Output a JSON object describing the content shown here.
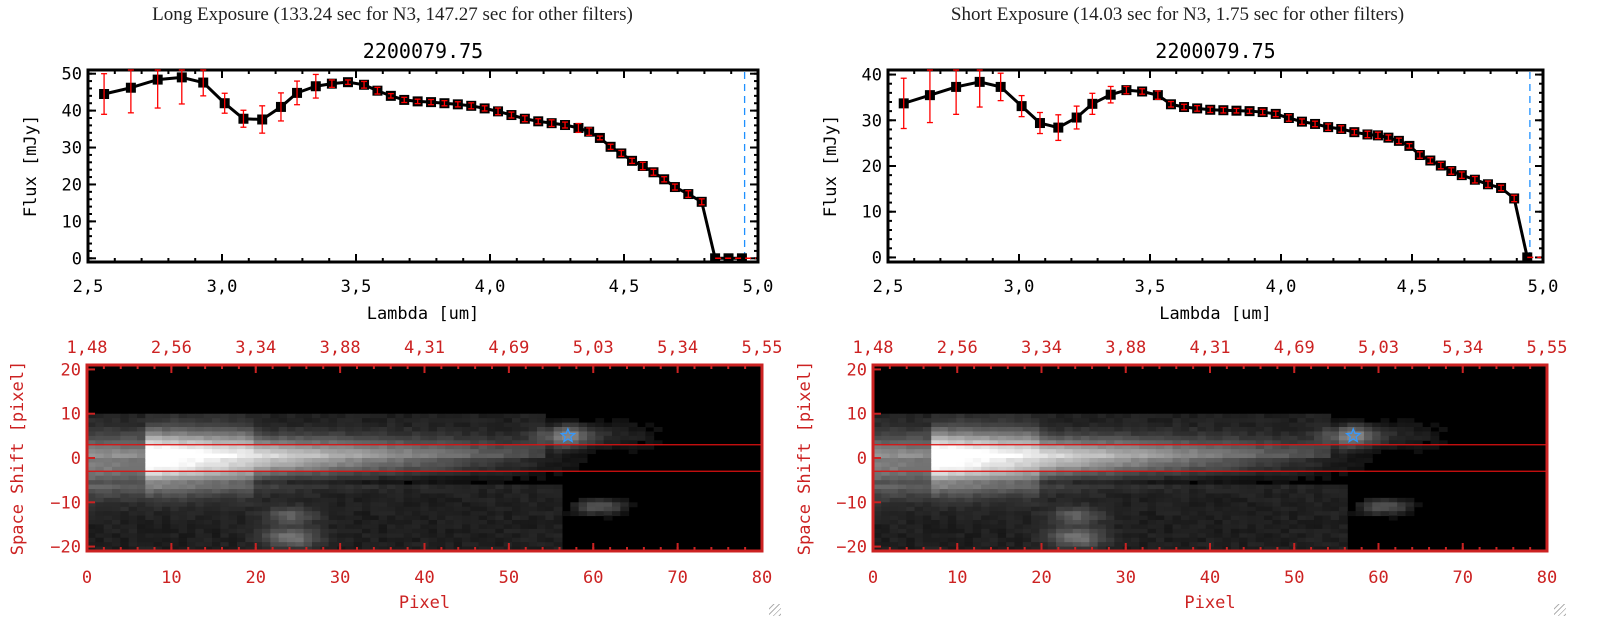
{
  "chart_data": [
    {
      "id": "long",
      "type": "line",
      "exposure_title": "Long Exposure (133.24 sec for N3, 147.27 sec for other filters)",
      "title": "2200079.75",
      "xlabel": "Lambda [um]",
      "ylabel": "Flux [mJy]",
      "xlim": [
        2.5,
        5.0
      ],
      "ylim": [
        -1,
        51
      ],
      "xticks": [
        "2.5",
        "3.0",
        "3.5",
        "4.0",
        "4.5",
        "5.0"
      ],
      "yticks": [
        "0",
        "10",
        "20",
        "30",
        "40",
        "50"
      ],
      "cutoff_line_x": 4.95,
      "series": [
        {
          "name": "flux",
          "x": [
            2.56,
            2.66,
            2.76,
            2.85,
            2.93,
            3.01,
            3.08,
            3.15,
            3.22,
            3.28,
            3.35,
            3.41,
            3.47,
            3.53,
            3.58,
            3.63,
            3.68,
            3.73,
            3.78,
            3.83,
            3.88,
            3.93,
            3.98,
            4.03,
            4.08,
            4.13,
            4.18,
            4.23,
            4.28,
            4.33,
            4.37,
            4.41,
            4.45,
            4.49,
            4.53,
            4.57,
            4.61,
            4.65,
            4.69,
            4.74,
            4.79,
            4.84,
            4.89,
            4.94
          ],
          "y": [
            44.5,
            46.2,
            48.4,
            49.0,
            47.6,
            42.0,
            37.8,
            37.6,
            41.0,
            44.8,
            46.6,
            47.3,
            47.7,
            47.0,
            45.4,
            44.0,
            42.9,
            42.5,
            42.3,
            42.0,
            41.7,
            41.3,
            40.6,
            39.8,
            38.8,
            37.8,
            37.1,
            36.6,
            36.1,
            35.3,
            34.3,
            32.6,
            30.2,
            28.4,
            26.4,
            25.0,
            23.3,
            21.4,
            19.3,
            17.4,
            15.3,
            0.0,
            0.0,
            0.0
          ],
          "yerr": [
            5.5,
            6.8,
            7.7,
            7.2,
            3.6,
            2.7,
            2.3,
            3.7,
            3.8,
            3.2,
            3.2,
            1.0,
            0.6,
            0.9,
            0.9,
            0.6,
            0.7,
            0.6,
            0.7,
            0.7,
            0.7,
            0.8,
            0.7,
            0.9,
            0.8,
            0.8,
            0.7,
            0.9,
            0.8,
            1.2,
            1.0,
            0.5,
            0.7,
            0.8,
            0.7,
            1.0,
            0.8,
            0.7,
            0.8,
            0.9,
            0.8,
            0,
            0,
            0
          ]
        }
      ],
      "image": {
        "xlabel": "Pixel",
        "ylabel": "Space Shift [pixel]",
        "xlim": [
          0,
          80
        ],
        "ylim": [
          -21,
          21
        ],
        "xticks": [
          "0",
          "10",
          "20",
          "30",
          "40",
          "50",
          "60",
          "70",
          "80"
        ],
        "yticks": [
          "-20",
          "-10",
          "0",
          "10",
          "20"
        ],
        "top_ticks": [
          "1.48",
          "2.56",
          "3.34",
          "3.88",
          "4.31",
          "4.69",
          "5.03",
          "5.34",
          "5.55"
        ],
        "aperture": [
          -3,
          3
        ],
        "marker": {
          "x": 57,
          "y": 5,
          "symbol": "star"
        }
      }
    },
    {
      "id": "short",
      "type": "line",
      "exposure_title": "Short Exposure (14.03 sec for N3, 1.75 sec for other filters)",
      "title": "2200079.75",
      "xlabel": "Lambda [um]",
      "ylabel": "Flux [mJy]",
      "xlim": [
        2.5,
        5.0
      ],
      "ylim": [
        -1,
        41
      ],
      "xticks": [
        "2.5",
        "3.0",
        "3.5",
        "4.0",
        "4.5",
        "5.0"
      ],
      "yticks": [
        "0",
        "10",
        "20",
        "30",
        "40"
      ],
      "cutoff_line_x": 4.95,
      "series": [
        {
          "name": "flux",
          "x": [
            2.56,
            2.66,
            2.76,
            2.85,
            2.93,
            3.01,
            3.08,
            3.15,
            3.22,
            3.28,
            3.35,
            3.41,
            3.47,
            3.53,
            3.58,
            3.63,
            3.68,
            3.73,
            3.78,
            3.83,
            3.88,
            3.93,
            3.98,
            4.03,
            4.08,
            4.13,
            4.18,
            4.23,
            4.28,
            4.33,
            4.37,
            4.41,
            4.45,
            4.49,
            4.53,
            4.57,
            4.61,
            4.65,
            4.69,
            4.74,
            4.79,
            4.84,
            4.89,
            4.94
          ],
          "y": [
            33.7,
            35.5,
            37.3,
            38.4,
            37.3,
            33.1,
            29.4,
            28.4,
            30.6,
            33.6,
            35.6,
            36.6,
            36.3,
            35.5,
            33.5,
            32.9,
            32.6,
            32.3,
            32.2,
            32.1,
            32.0,
            31.8,
            31.4,
            30.5,
            29.7,
            29.2,
            28.5,
            28.1,
            27.4,
            26.9,
            26.7,
            26.2,
            25.5,
            24.4,
            22.4,
            21.2,
            20.1,
            18.9,
            18.0,
            17.0,
            16.0,
            15.2,
            12.9,
            0.0
          ],
          "yerr": [
            5.5,
            6.0,
            6.0,
            5.5,
            3.0,
            2.3,
            2.3,
            2.8,
            2.5,
            2.3,
            1.8,
            0.8,
            0.6,
            0.9,
            0.6,
            0.6,
            0.6,
            0.6,
            0.6,
            0.5,
            0.5,
            0.6,
            0.6,
            0.7,
            0.6,
            0.6,
            0.7,
            0.7,
            0.6,
            0.7,
            0.7,
            0.6,
            0.6,
            0.5,
            0.7,
            0.6,
            0.7,
            0.7,
            0.7,
            0.7,
            0.7,
            0.6,
            0.7,
            0
          ]
        }
      ],
      "image": {
        "xlabel": "Pixel",
        "ylabel": "Space Shift [pixel]",
        "xlim": [
          0,
          80
        ],
        "ylim": [
          -21,
          21
        ],
        "xticks": [
          "0",
          "10",
          "20",
          "30",
          "40",
          "50",
          "60",
          "70",
          "80"
        ],
        "yticks": [
          "-20",
          "-10",
          "0",
          "10",
          "20"
        ],
        "top_ticks": [
          "1.48",
          "2.56",
          "3.34",
          "3.88",
          "4.31",
          "4.69",
          "5.03",
          "5.34",
          "5.55"
        ],
        "aperture": [
          -3,
          3
        ],
        "marker": {
          "x": 57,
          "y": 5,
          "symbol": "star"
        }
      }
    }
  ],
  "colors": {
    "line": "#000000",
    "marker": "#000000",
    "error_bar": "#ff0000",
    "cutoff_line": "#1e90ff",
    "zero_dash": "#ff0000",
    "image_axes": "#cc2222",
    "aperture": "#dd1111",
    "star": "#3399ff"
  }
}
